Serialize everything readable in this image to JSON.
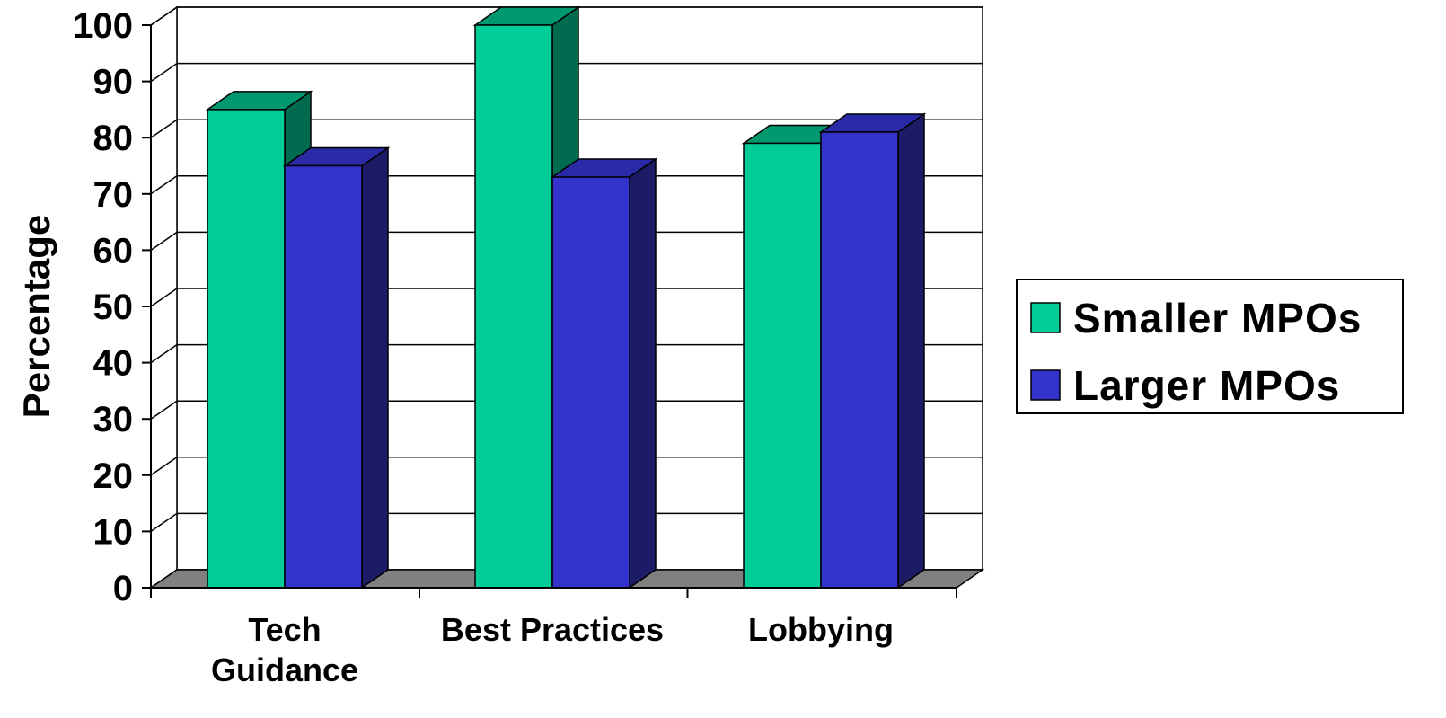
{
  "chart_data": {
    "type": "bar",
    "title": "",
    "xlabel": "",
    "ylabel": "Percentage",
    "ylim": [
      0,
      100
    ],
    "yticks": [
      0,
      10,
      20,
      30,
      40,
      50,
      60,
      70,
      80,
      90,
      100
    ],
    "categories": [
      [
        "Tech",
        "Guidance"
      ],
      [
        "Best Practices"
      ],
      [
        "Lobbying"
      ]
    ],
    "series": [
      {
        "name": "Smaller MPOs",
        "values": [
          85,
          100,
          79
        ]
      },
      {
        "name": "Larger MPOs",
        "values": [
          75,
          73,
          81
        ]
      }
    ],
    "grid": true,
    "three_d": true,
    "legend_position": "right",
    "colors": {
      "series_front": [
        "#00CC99",
        "#3333CC"
      ],
      "series_side": [
        "#006B4F",
        "#1C1C66"
      ],
      "series_top": [
        "#00996F",
        "#2A2AA6"
      ],
      "floor": "#808080",
      "grid": "#000000",
      "background": "#FFFFFF"
    }
  }
}
